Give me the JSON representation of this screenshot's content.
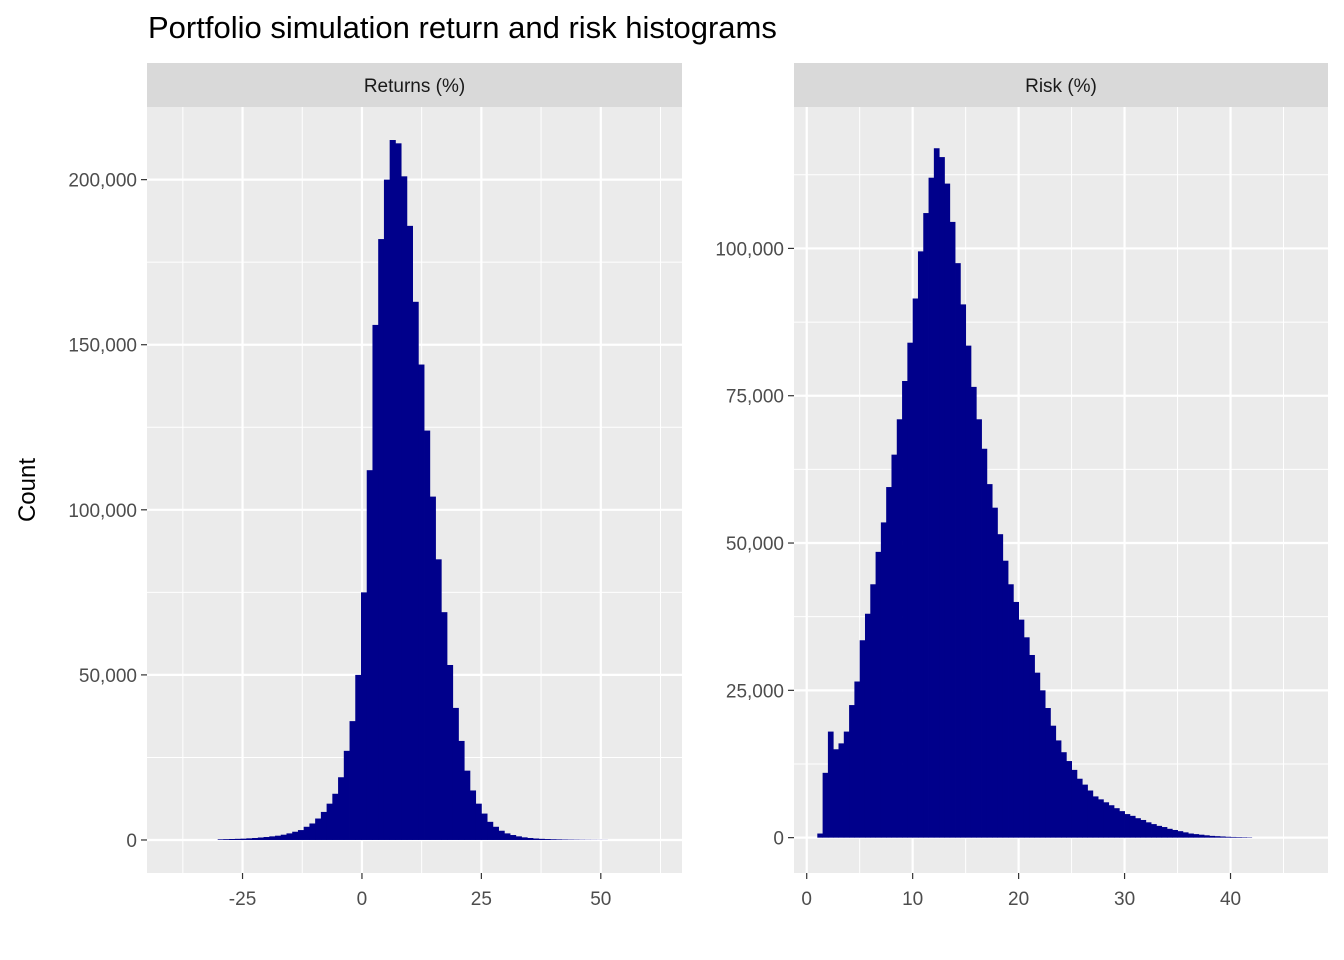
{
  "title": "Portfolio simulation return and risk histograms",
  "ylabel": "Count",
  "colors": {
    "bar": "#00008B",
    "panel": "#EBEBEB",
    "strip": "#D9D9D9",
    "grid": "#FFFFFF",
    "tick_text": "#4D4D4D"
  },
  "chart_data": [
    {
      "type": "bar",
      "title": "Returns (%)",
      "xlim": [
        -45,
        67
      ],
      "ylim": [
        -10000,
        222000
      ],
      "x_ticks": [
        -25,
        0,
        25,
        50
      ],
      "x_tick_labels": [
        "-25",
        "0",
        "25",
        "50"
      ],
      "y_ticks": [
        0,
        50000,
        100000,
        150000,
        200000
      ],
      "y_tick_labels": [
        "0",
        "50,000",
        "100,000",
        "150,000",
        "200,000"
      ],
      "bin_width": 1.2,
      "x": [
        -29.6,
        -28.4,
        -27.2,
        -26.0,
        -24.8,
        -23.6,
        -22.4,
        -21.2,
        -20.0,
        -18.8,
        -17.6,
        -16.4,
        -15.2,
        -14.0,
        -12.8,
        -11.6,
        -10.4,
        -9.2,
        -8.0,
        -6.8,
        -5.6,
        -4.4,
        -3.2,
        -2.0,
        -0.8,
        0.4,
        1.6,
        2.8,
        4.0,
        5.2,
        6.4,
        7.6,
        8.8,
        10.0,
        11.2,
        12.4,
        13.6,
        14.8,
        16.0,
        17.2,
        18.4,
        19.6,
        20.8,
        22.0,
        23.2,
        24.4,
        25.6,
        26.8,
        28.0,
        29.2,
        30.4,
        31.6,
        32.8,
        34.0,
        35.2,
        36.4,
        37.6,
        38.8,
        40.0,
        41.2,
        42.4,
        43.6,
        44.8,
        46.0,
        47.2,
        48.4,
        49.6,
        50.8
      ],
      "values": [
        200,
        250,
        300,
        350,
        400,
        500,
        600,
        750,
        900,
        1100,
        1300,
        1600,
        2000,
        2500,
        3000,
        4000,
        5000,
        6500,
        8500,
        11000,
        14000,
        19000,
        27000,
        36000,
        50000,
        75000,
        112000,
        156000,
        182000,
        200000,
        212000,
        211000,
        201000,
        186000,
        163000,
        144000,
        124000,
        104000,
        85000,
        69000,
        53000,
        40000,
        30000,
        21000,
        15000,
        11000,
        8000,
        5500,
        4000,
        2800,
        2000,
        1500,
        1100,
        800,
        600,
        450,
        350,
        280,
        220,
        180,
        140,
        110,
        90,
        70,
        55,
        45,
        35,
        25
      ]
    },
    {
      "type": "bar",
      "title": "Risk (%)",
      "xlim": [
        -1.2,
        49.2
      ],
      "ylim": [
        -6000,
        124000
      ],
      "x_ticks": [
        0,
        10,
        20,
        30,
        40
      ],
      "x_tick_labels": [
        "0",
        "10",
        "20",
        "30",
        "40"
      ],
      "y_ticks": [
        0,
        25000,
        50000,
        75000,
        100000
      ],
      "y_tick_labels": [
        "0",
        "25,000",
        "50,000",
        "75,000",
        "100,000"
      ],
      "bin_width": 0.5,
      "x": [
        1.25,
        1.75,
        2.25,
        2.75,
        3.25,
        3.75,
        4.25,
        4.75,
        5.25,
        5.75,
        6.25,
        6.75,
        7.25,
        7.75,
        8.25,
        8.75,
        9.25,
        9.75,
        10.25,
        10.75,
        11.25,
        11.75,
        12.25,
        12.75,
        13.25,
        13.75,
        14.25,
        14.75,
        15.25,
        15.75,
        16.25,
        16.75,
        17.25,
        17.75,
        18.25,
        18.75,
        19.25,
        19.75,
        20.25,
        20.75,
        21.25,
        21.75,
        22.25,
        22.75,
        23.25,
        23.75,
        24.25,
        24.75,
        25.25,
        25.75,
        26.25,
        26.75,
        27.25,
        27.75,
        28.25,
        28.75,
        29.25,
        29.75,
        30.25,
        30.75,
        31.25,
        31.75,
        32.25,
        32.75,
        33.25,
        33.75,
        34.25,
        34.75,
        35.25,
        35.75,
        36.25,
        36.75,
        37.25,
        37.75,
        38.25,
        38.75,
        39.25,
        39.75,
        40.25,
        40.75,
        41.25,
        41.75
      ],
      "values": [
        700,
        11000,
        18000,
        15000,
        16000,
        18000,
        22500,
        26500,
        33500,
        38000,
        43000,
        48500,
        53500,
        59500,
        65000,
        71000,
        77500,
        84000,
        91500,
        99500,
        106000,
        112000,
        117000,
        115500,
        111000,
        104500,
        97500,
        90500,
        83500,
        76500,
        71000,
        66000,
        60000,
        56000,
        51500,
        47000,
        43000,
        40000,
        37000,
        34000,
        31000,
        28000,
        25000,
        22000,
        19000,
        16500,
        14500,
        13000,
        11500,
        10000,
        9000,
        8000,
        7000,
        6500,
        6000,
        5500,
        5000,
        4500,
        4000,
        3700,
        3300,
        3000,
        2600,
        2300,
        2000,
        1800,
        1500,
        1300,
        1100,
        900,
        700,
        600,
        500,
        400,
        300,
        250,
        200,
        150,
        120,
        100,
        80,
        60
      ]
    }
  ]
}
